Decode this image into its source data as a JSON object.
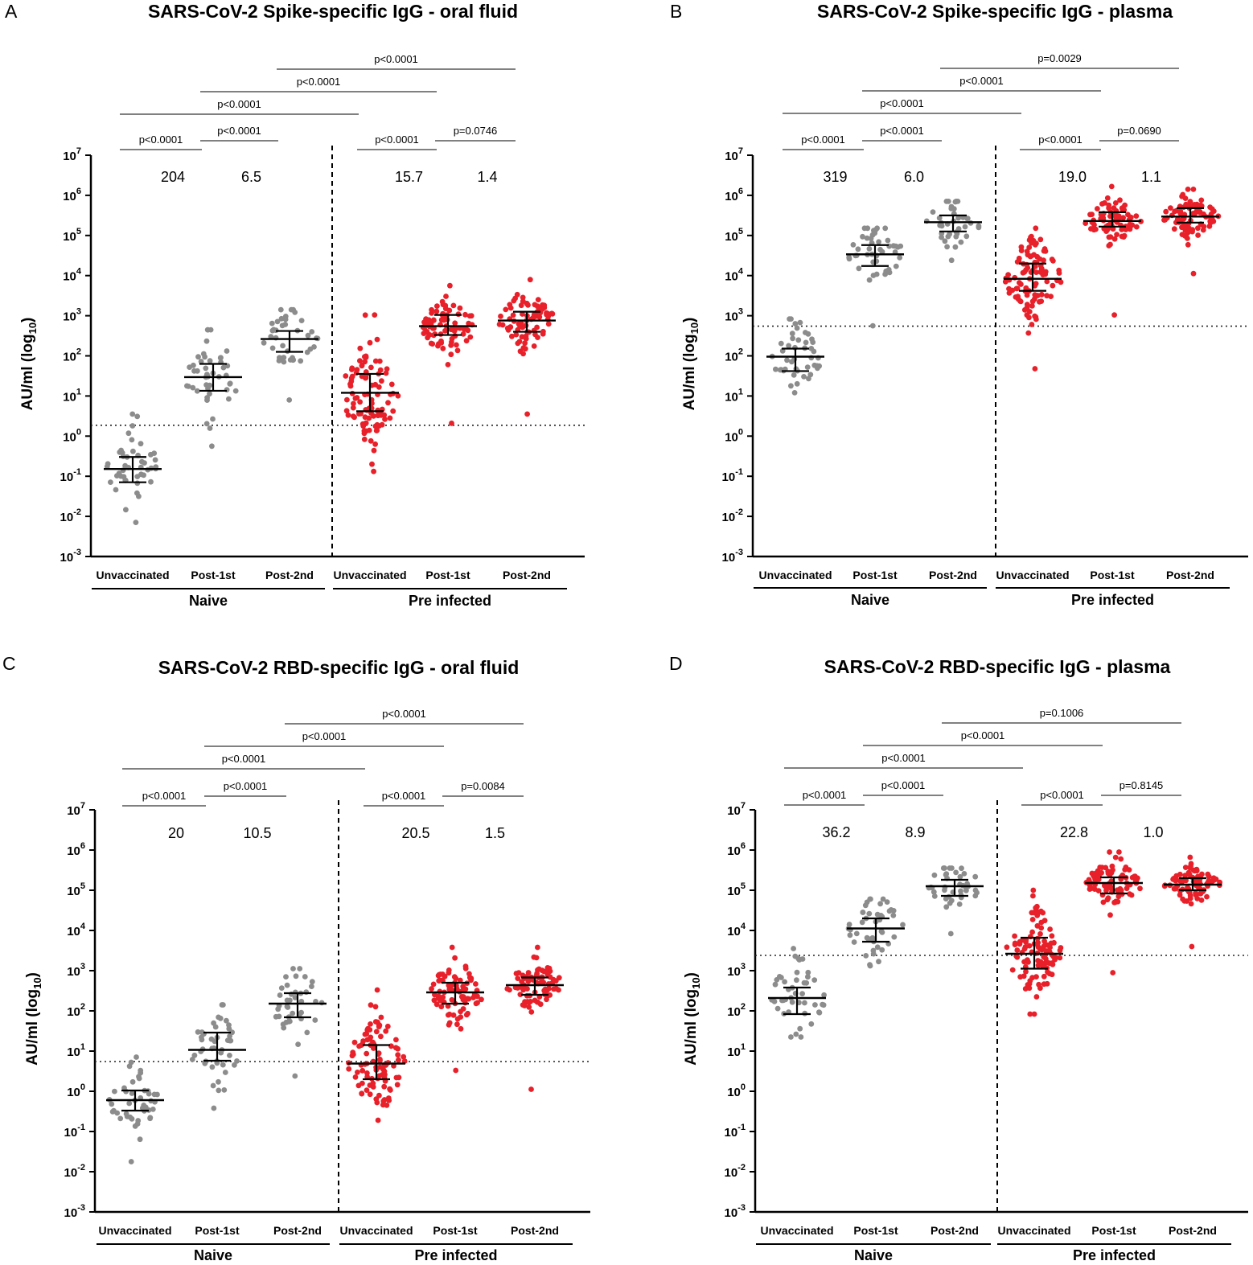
{
  "figure": {
    "ylabel": "AU/ml (log",
    "ylabel_sub": "10",
    "ylabel_close": ")",
    "y_ticks": [
      {
        "base": "10",
        "exp": "-3"
      },
      {
        "base": "10",
        "exp": "-2"
      },
      {
        "base": "10",
        "exp": "-1"
      },
      {
        "base": "10",
        "exp": "0"
      },
      {
        "base": "10",
        "exp": "1"
      },
      {
        "base": "10",
        "exp": "2"
      },
      {
        "base": "10",
        "exp": "3"
      },
      {
        "base": "10",
        "exp": "4"
      },
      {
        "base": "10",
        "exp": "5"
      },
      {
        "base": "10",
        "exp": "6"
      },
      {
        "base": "10",
        "exp": "7"
      }
    ],
    "categories": [
      "Unvaccinated",
      "Post-1st",
      "Post-2nd",
      "Unvaccinated",
      "Post-1st",
      "Post-2nd"
    ],
    "groups": [
      "Naive",
      "Pre infected"
    ],
    "colors": {
      "naive": "#8c8c8c",
      "pre_infected": "#e8202a",
      "axis": "#000000"
    }
  },
  "chart_data": [
    {
      "letter": "A",
      "type": "scatter",
      "title": "SARS-CoV-2 Spike-specific IgG - oral fluid",
      "ylabel": "AU/ml (log10)",
      "yscale": "log",
      "ylim_log10": [
        -3,
        7
      ],
      "cutoff_log10": 0.27,
      "series": [
        {
          "name": "Naive Unvaccinated",
          "median_log10": -0.82,
          "q1_log10": -1.15,
          "q3_log10": -0.52,
          "min_log10": -2.15,
          "max_log10": 0.55,
          "n": 45
        },
        {
          "name": "Naive Post-1st",
          "median_log10": 1.47,
          "q1_log10": 1.13,
          "q3_log10": 1.8,
          "min_log10": -0.25,
          "max_log10": 2.65,
          "n": 45
        },
        {
          "name": "Naive Post-2nd",
          "median_log10": 2.42,
          "q1_log10": 2.1,
          "q3_log10": 2.62,
          "min_log10": 0.9,
          "max_log10": 3.15,
          "n": 40
        },
        {
          "name": "Pre infected Unvaccinated",
          "median_log10": 1.08,
          "q1_log10": 0.62,
          "q3_log10": 1.55,
          "min_log10": -0.88,
          "max_log10": 3.02,
          "n": 100
        },
        {
          "name": "Pre infected Post-1st",
          "median_log10": 2.74,
          "q1_log10": 2.52,
          "q3_log10": 3.02,
          "min_log10": 0.32,
          "max_log10": 3.75,
          "n": 80
        },
        {
          "name": "Pre infected Post-2nd",
          "median_log10": 2.88,
          "q1_log10": 2.6,
          "q3_log10": 3.1,
          "min_log10": 0.55,
          "max_log10": 3.9,
          "n": 80
        }
      ],
      "fold_changes": [
        "204",
        "6.5",
        "15.7",
        "1.4"
      ],
      "comparisons": [
        {
          "from": 0,
          "to": 1,
          "p": "p<0.0001"
        },
        {
          "from": 1,
          "to": 2,
          "p": "p<0.0001"
        },
        {
          "from": 3,
          "to": 4,
          "p": "p<0.0001"
        },
        {
          "from": 4,
          "to": 5,
          "p": "p=0.0746"
        },
        {
          "from": 0,
          "to": 3,
          "p": "p<0.0001"
        },
        {
          "from": 1,
          "to": 4,
          "p": "p<0.0001"
        },
        {
          "from": 2,
          "to": 5,
          "p": "p<0.0001"
        }
      ]
    },
    {
      "letter": "B",
      "type": "scatter",
      "title": "SARS-CoV-2 Spike-specific IgG - plasma",
      "ylabel": "AU/ml (log10)",
      "yscale": "log",
      "ylim_log10": [
        -3,
        7
      ],
      "cutoff_log10": 2.74,
      "series": [
        {
          "name": "Naive Unvaccinated",
          "median_log10": 1.98,
          "q1_log10": 1.62,
          "q3_log10": 2.18,
          "min_log10": 1.08,
          "max_log10": 2.92,
          "n": 45
        },
        {
          "name": "Naive Post-1st",
          "median_log10": 4.53,
          "q1_log10": 4.24,
          "q3_log10": 4.76,
          "min_log10": 2.75,
          "max_log10": 5.18,
          "n": 45
        },
        {
          "name": "Naive Post-2nd",
          "median_log10": 5.33,
          "q1_log10": 5.1,
          "q3_log10": 5.5,
          "min_log10": 4.38,
          "max_log10": 5.85,
          "n": 40
        },
        {
          "name": "Pre infected Unvaccinated",
          "median_log10": 3.92,
          "q1_log10": 3.62,
          "q3_log10": 4.3,
          "min_log10": 1.68,
          "max_log10": 5.18,
          "n": 100
        },
        {
          "name": "Pre infected Post-1st",
          "median_log10": 5.36,
          "q1_log10": 5.22,
          "q3_log10": 5.58,
          "min_log10": 3.02,
          "max_log10": 6.22,
          "n": 80
        },
        {
          "name": "Pre infected Post-2nd",
          "median_log10": 5.47,
          "q1_log10": 5.32,
          "q3_log10": 5.68,
          "min_log10": 4.05,
          "max_log10": 6.15,
          "n": 80
        }
      ],
      "fold_changes": [
        "319",
        "6.0",
        "19.0",
        "1.1"
      ],
      "comparisons": [
        {
          "from": 0,
          "to": 1,
          "p": "p<0.0001"
        },
        {
          "from": 1,
          "to": 2,
          "p": "p<0.0001"
        },
        {
          "from": 3,
          "to": 4,
          "p": "p<0.0001"
        },
        {
          "from": 4,
          "to": 5,
          "p": "p=0.0690"
        },
        {
          "from": 0,
          "to": 3,
          "p": "p<0.0001"
        },
        {
          "from": 1,
          "to": 4,
          "p": "p<0.0001"
        },
        {
          "from": 2,
          "to": 5,
          "p": "p=0.0029"
        }
      ]
    },
    {
      "letter": "C",
      "type": "scatter",
      "title": "SARS-CoV-2 RBD-specific IgG - oral fluid",
      "ylabel": "AU/ml (log10)",
      "yscale": "log",
      "ylim_log10": [
        -3,
        7
      ],
      "cutoff_log10": 0.74,
      "series": [
        {
          "name": "Naive Unvaccinated",
          "median_log10": -0.22,
          "q1_log10": -0.48,
          "q3_log10": 0.02,
          "min_log10": -1.75,
          "max_log10": 0.85,
          "n": 45
        },
        {
          "name": "Naive Post-1st",
          "median_log10": 1.03,
          "q1_log10": 0.76,
          "q3_log10": 1.46,
          "min_log10": -0.42,
          "max_log10": 2.15,
          "n": 45
        },
        {
          "name": "Naive Post-2nd",
          "median_log10": 2.18,
          "q1_log10": 1.84,
          "q3_log10": 2.44,
          "min_log10": 0.38,
          "max_log10": 3.05,
          "n": 40
        },
        {
          "name": "Pre infected Unvaccinated",
          "median_log10": 0.69,
          "q1_log10": 0.3,
          "q3_log10": 1.15,
          "min_log10": -0.72,
          "max_log10": 2.52,
          "n": 100
        },
        {
          "name": "Pre infected Post-1st",
          "median_log10": 2.46,
          "q1_log10": 2.18,
          "q3_log10": 2.7,
          "min_log10": 0.52,
          "max_log10": 3.58,
          "n": 80
        },
        {
          "name": "Pre infected Post-2nd",
          "median_log10": 2.64,
          "q1_log10": 2.4,
          "q3_log10": 2.83,
          "min_log10": 0.05,
          "max_log10": 3.58,
          "n": 80
        }
      ],
      "fold_changes": [
        "20",
        "10.5",
        "20.5",
        "1.5"
      ],
      "comparisons": [
        {
          "from": 0,
          "to": 1,
          "p": "p<0.0001"
        },
        {
          "from": 1,
          "to": 2,
          "p": "p<0.0001"
        },
        {
          "from": 3,
          "to": 4,
          "p": "p<0.0001"
        },
        {
          "from": 4,
          "to": 5,
          "p": "p=0.0084"
        },
        {
          "from": 0,
          "to": 3,
          "p": "p<0.0001"
        },
        {
          "from": 1,
          "to": 4,
          "p": "p<0.0001"
        },
        {
          "from": 2,
          "to": 5,
          "p": "p<0.0001"
        }
      ]
    },
    {
      "letter": "D",
      "type": "scatter",
      "title": "SARS-CoV-2 RBD-specific IgG - plasma",
      "ylabel": "AU/ml (log10)",
      "yscale": "log",
      "ylim_log10": [
        -3,
        7
      ],
      "cutoff_log10": 3.38,
      "series": [
        {
          "name": "Naive Unvaccinated",
          "median_log10": 2.32,
          "q1_log10": 1.92,
          "q3_log10": 2.58,
          "min_log10": 1.35,
          "max_log10": 3.55,
          "n": 45
        },
        {
          "name": "Naive Post-1st",
          "median_log10": 4.05,
          "q1_log10": 3.72,
          "q3_log10": 4.3,
          "min_log10": 3.12,
          "max_log10": 4.78,
          "n": 45
        },
        {
          "name": "Naive Post-2nd",
          "median_log10": 5.1,
          "q1_log10": 4.86,
          "q3_log10": 5.26,
          "min_log10": 3.92,
          "max_log10": 5.55,
          "n": 40
        },
        {
          "name": "Pre infected Unvaccinated",
          "median_log10": 3.42,
          "q1_log10": 3.05,
          "q3_log10": 3.82,
          "min_log10": 1.92,
          "max_log10": 5.0,
          "n": 100
        },
        {
          "name": "Pre infected Post-1st",
          "median_log10": 5.18,
          "q1_log10": 4.92,
          "q3_log10": 5.32,
          "min_log10": 2.95,
          "max_log10": 5.95,
          "n": 80
        },
        {
          "name": "Pre infected Post-2nd",
          "median_log10": 5.14,
          "q1_log10": 5.0,
          "q3_log10": 5.3,
          "min_log10": 3.6,
          "max_log10": 5.82,
          "n": 80
        }
      ],
      "fold_changes": [
        "36.2",
        "8.9",
        "22.8",
        "1.0"
      ],
      "comparisons": [
        {
          "from": 0,
          "to": 1,
          "p": "p<0.0001"
        },
        {
          "from": 1,
          "to": 2,
          "p": "p<0.0001"
        },
        {
          "from": 3,
          "to": 4,
          "p": "p<0.0001"
        },
        {
          "from": 4,
          "to": 5,
          "p": "p=0.8145"
        },
        {
          "from": 0,
          "to": 3,
          "p": "p<0.0001"
        },
        {
          "from": 1,
          "to": 4,
          "p": "p<0.0001"
        },
        {
          "from": 2,
          "to": 5,
          "p": "p=0.1006"
        }
      ]
    }
  ]
}
